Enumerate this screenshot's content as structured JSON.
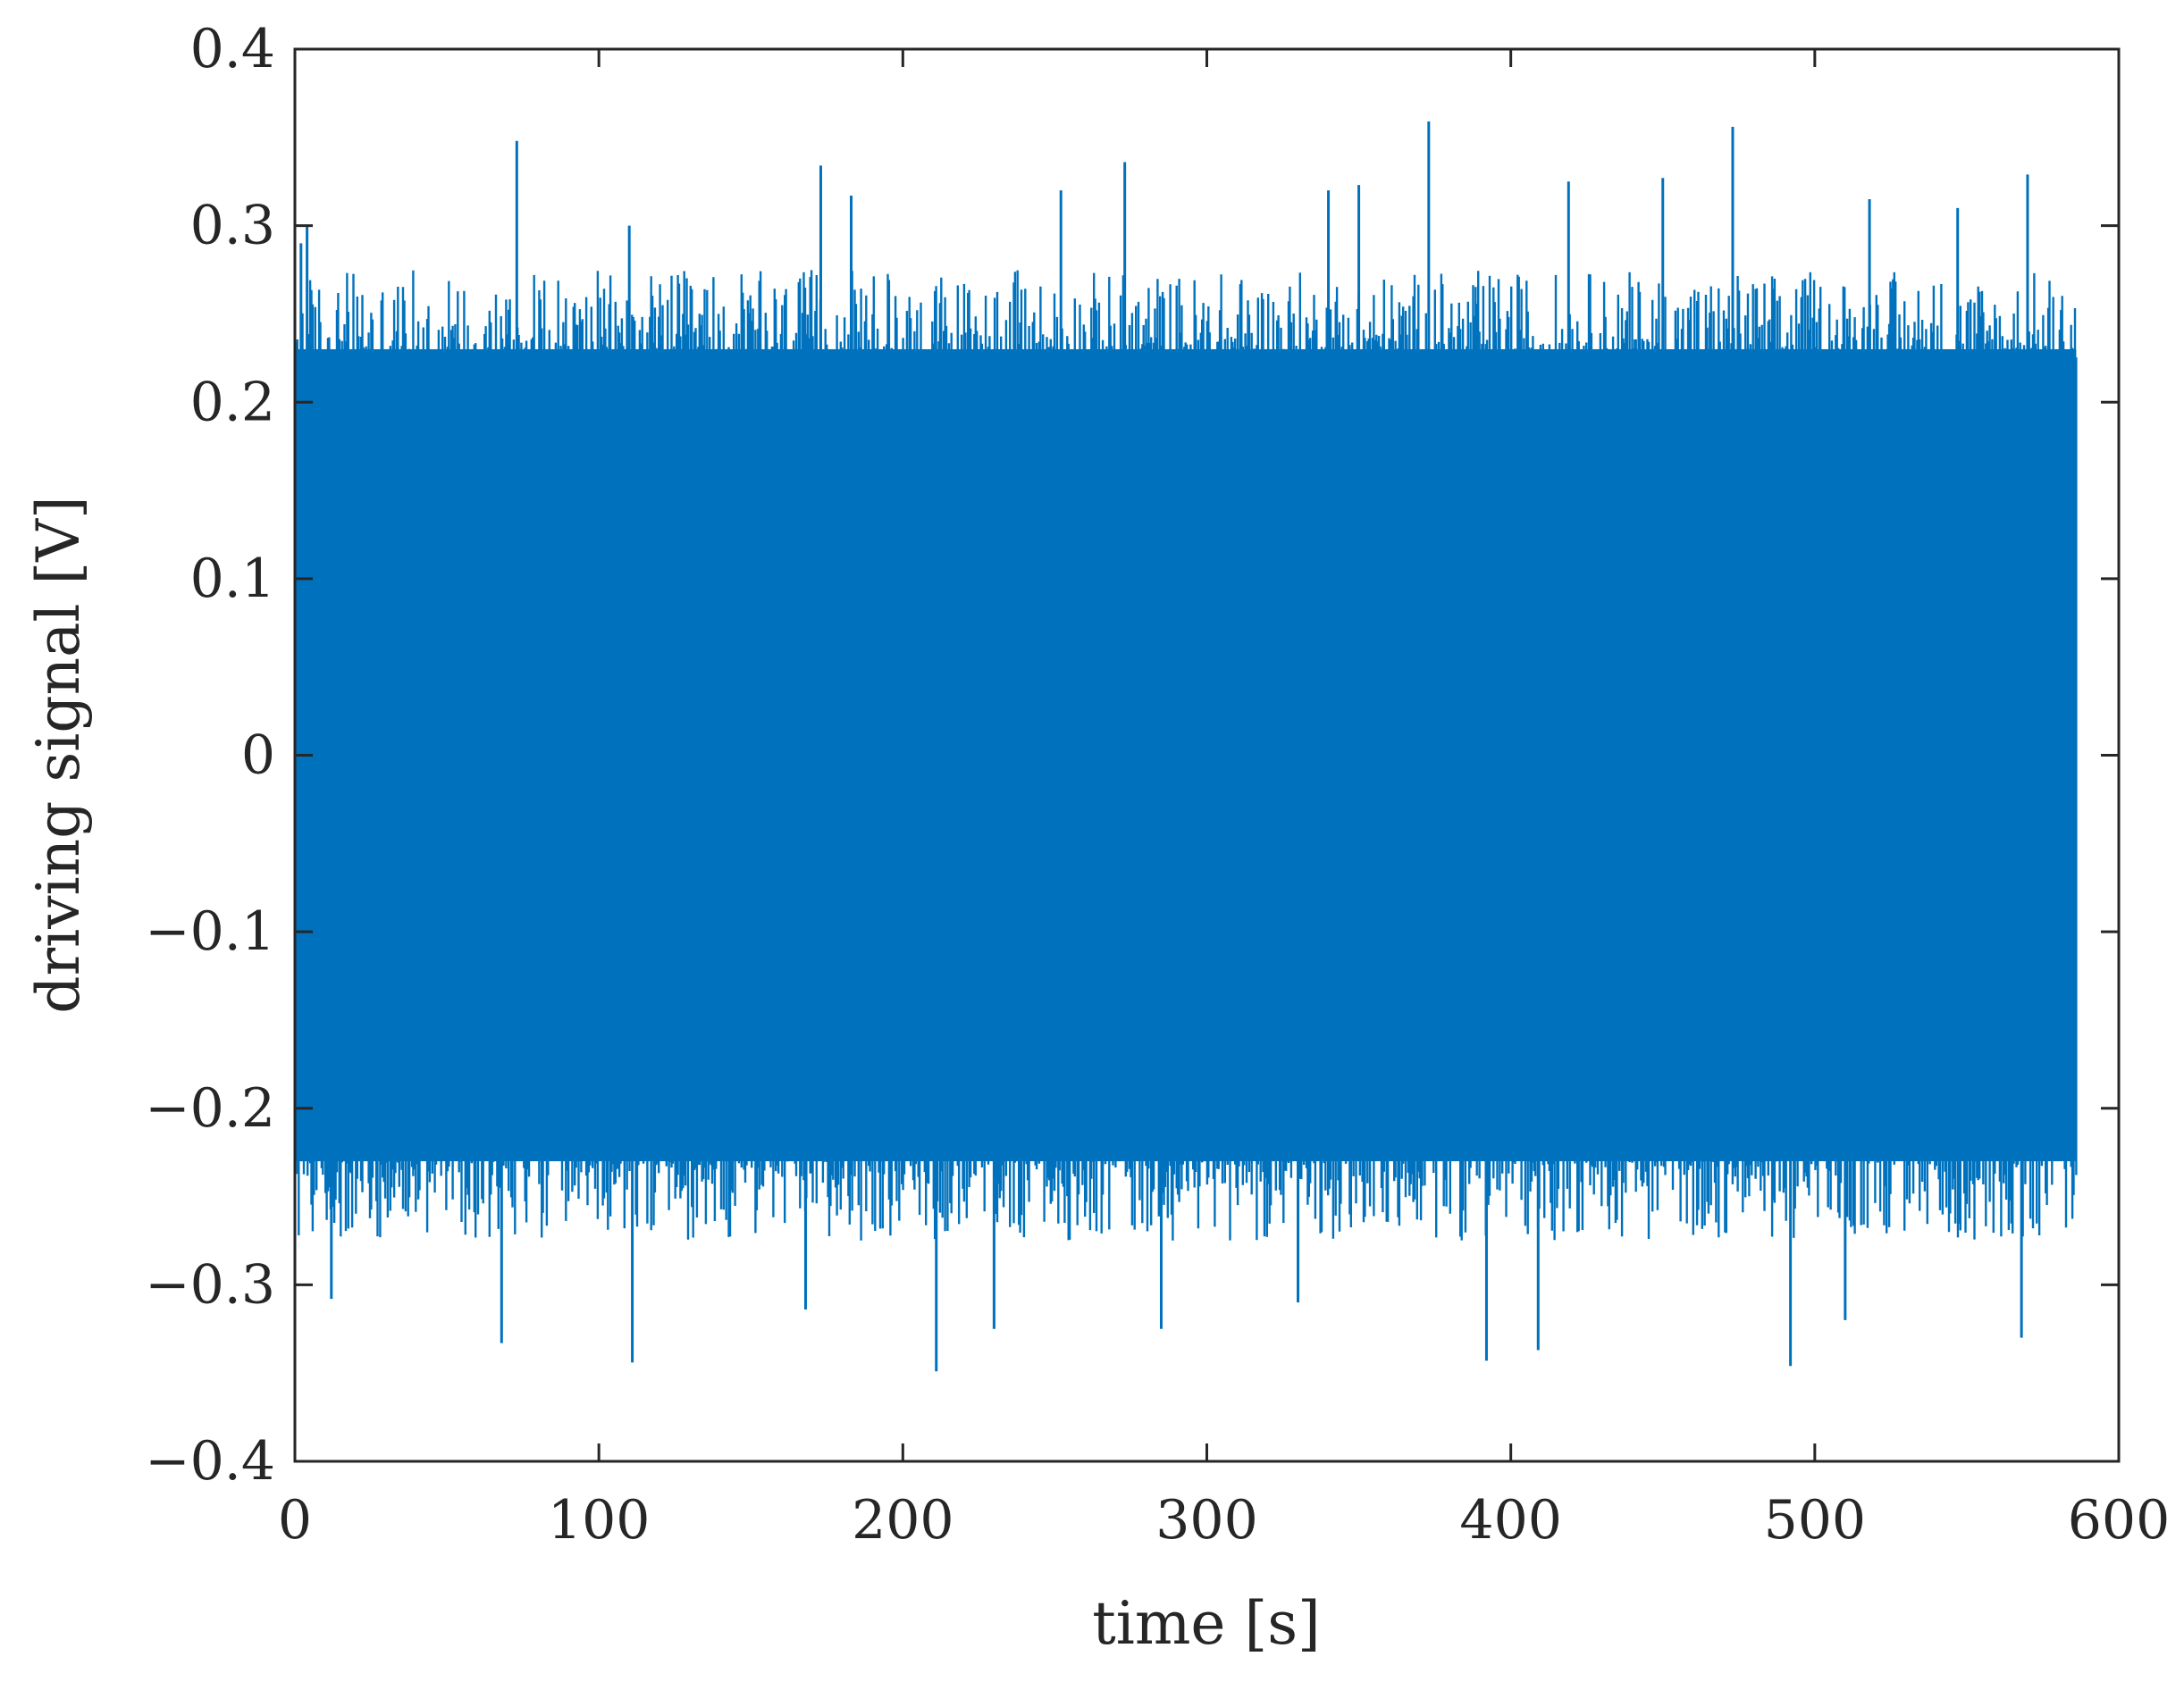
{
  "chart_data": {
    "type": "line",
    "xlabel": "time [s]",
    "ylabel": "driving signal [V]",
    "xlim": [
      0,
      600
    ],
    "ylim": [
      -0.4,
      0.4
    ],
    "xticks": [
      0,
      100,
      200,
      300,
      400,
      500,
      600
    ],
    "xtick_labels": [
      "0",
      "100",
      "200",
      "300",
      "400",
      "500",
      "600"
    ],
    "yticks": [
      -0.4,
      -0.3,
      -0.2,
      -0.1,
      0,
      0.1,
      0.2,
      0.3,
      0.4
    ],
    "ytick_labels": [
      "−0.4",
      "−0.3",
      "−0.2",
      "−0.1",
      "0",
      "0.1",
      "0.2",
      "0.3",
      "0.4"
    ],
    "grid": false,
    "legend": "none",
    "series": [
      {
        "color": "#0072BD",
        "x_range": [
          0,
          586
        ],
        "band": {
          "upper": 0.25,
          "lower": -0.25
        },
        "peaks": [
          {
            "x": 2,
            "y": 0.29
          },
          {
            "x": 4,
            "y": 0.3
          },
          {
            "x": 73,
            "y": 0.348
          },
          {
            "x": 110,
            "y": 0.3
          },
          {
            "x": 173,
            "y": 0.334
          },
          {
            "x": 183,
            "y": 0.317
          },
          {
            "x": 252,
            "y": 0.32
          },
          {
            "x": 273,
            "y": 0.336
          },
          {
            "x": 340,
            "y": 0.32
          },
          {
            "x": 350,
            "y": 0.323
          },
          {
            "x": 373,
            "y": 0.359
          },
          {
            "x": 419,
            "y": 0.325
          },
          {
            "x": 450,
            "y": 0.327
          },
          {
            "x": 473,
            "y": 0.356
          },
          {
            "x": 518,
            "y": 0.315
          },
          {
            "x": 547,
            "y": 0.31
          },
          {
            "x": 570,
            "y": 0.329
          }
        ],
        "troughs": [
          {
            "x": 12,
            "y": -0.308
          },
          {
            "x": 68,
            "y": -0.333
          },
          {
            "x": 111,
            "y": -0.344
          },
          {
            "x": 168,
            "y": -0.314
          },
          {
            "x": 211,
            "y": -0.349
          },
          {
            "x": 230,
            "y": -0.325
          },
          {
            "x": 285,
            "y": -0.325
          },
          {
            "x": 330,
            "y": -0.31
          },
          {
            "x": 392,
            "y": -0.343
          },
          {
            "x": 409,
            "y": -0.337
          },
          {
            "x": 492,
            "y": -0.346
          },
          {
            "x": 510,
            "y": -0.32
          },
          {
            "x": 568,
            "y": -0.33
          }
        ]
      }
    ]
  }
}
